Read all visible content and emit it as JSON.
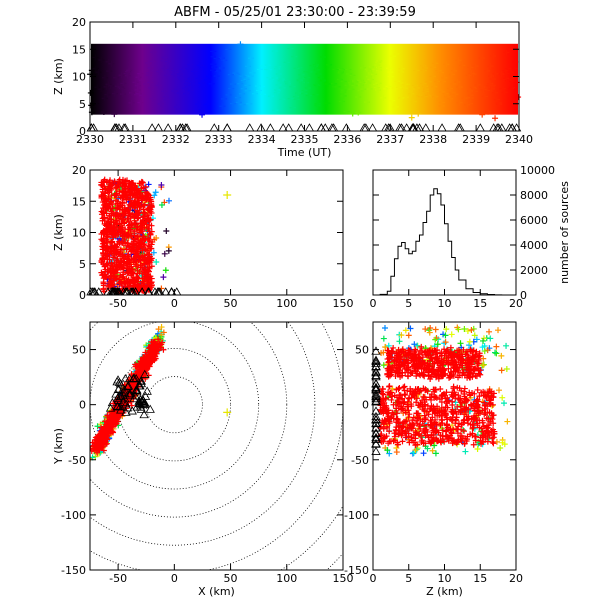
{
  "title": "ABFM - 05/25/01 23:30:00 - 23:39:59",
  "chart_data": [
    {
      "panel": "time-height",
      "type": "scatter",
      "xlabel": "Time (UT)",
      "ylabel": "Z (km)",
      "xlim": [
        2330,
        2340
      ],
      "ylim": [
        0,
        20
      ],
      "xticks": [
        "2330",
        "2331",
        "2332",
        "2333",
        "2334",
        "2335",
        "2336",
        "2337",
        "2338",
        "2339",
        "2340"
      ],
      "yticks": [
        "0",
        "5",
        "10",
        "15",
        "20"
      ],
      "color_encoding": "time (black→purple→blue→cyan→green→yellow→orange→red)",
      "source_density": {
        "z_min": 2,
        "z_max": 17,
        "z_peak": 9
      },
      "stations_marker": "triangle at Z=0"
    },
    {
      "panel": "x-height",
      "type": "scatter",
      "xlabel": "",
      "ylabel": "Z (km)",
      "xlim": [
        -75,
        150
      ],
      "ylim": [
        0,
        20
      ],
      "xticks": [
        "-50",
        "0",
        "50",
        "100",
        "150"
      ],
      "yticks": [
        "0",
        "5",
        "10",
        "15",
        "20"
      ],
      "outlier": {
        "x": 47,
        "z": 16
      }
    },
    {
      "panel": "height-histogram",
      "type": "line",
      "xlabel": "",
      "ylabel": "number of sources",
      "xlim": [
        0,
        20
      ],
      "ylim": [
        0,
        10000
      ],
      "xticks": [
        "0",
        "5",
        "10",
        "15",
        "20"
      ],
      "yticks": [
        "0",
        "2000",
        "4000",
        "6000",
        "8000",
        "10000"
      ],
      "x": [
        0,
        1,
        2,
        2.5,
        3,
        3.5,
        4,
        4.5,
        5,
        5.5,
        6,
        6.5,
        7,
        7.5,
        8,
        8.5,
        9,
        9.5,
        10,
        10.5,
        11,
        11.5,
        12,
        13,
        14,
        15,
        16,
        17,
        18,
        19,
        20
      ],
      "values": [
        0,
        50,
        300,
        1500,
        2900,
        3900,
        4200,
        3700,
        3300,
        3500,
        4300,
        4800,
        5800,
        6700,
        8000,
        8500,
        8100,
        7200,
        5700,
        4300,
        3000,
        2000,
        1200,
        500,
        200,
        100,
        40,
        10,
        0,
        0,
        0
      ]
    },
    {
      "panel": "plan-view",
      "type": "scatter",
      "xlabel": "X (km)",
      "ylabel": "Y (km)",
      "xlim": [
        -75,
        150
      ],
      "ylim": [
        -150,
        75
      ],
      "xticks": [
        "-50",
        "0",
        "50",
        "100",
        "150"
      ],
      "yticks": [
        "-150",
        "-100",
        "-50",
        "0",
        "50"
      ],
      "range_rings_km": [
        25,
        50,
        75,
        100,
        125,
        150,
        175,
        200
      ],
      "outlier": {
        "x": 47,
        "y": -7
      }
    },
    {
      "panel": "height-y",
      "type": "scatter",
      "xlabel": "Z (km)",
      "ylabel": "",
      "xlim": [
        0,
        20
      ],
      "ylim": [
        -150,
        75
      ],
      "xticks": [
        "0",
        "5",
        "10",
        "15",
        "20"
      ],
      "yticks": [
        "-150",
        "-100",
        "-50",
        "0",
        "50"
      ]
    }
  ]
}
